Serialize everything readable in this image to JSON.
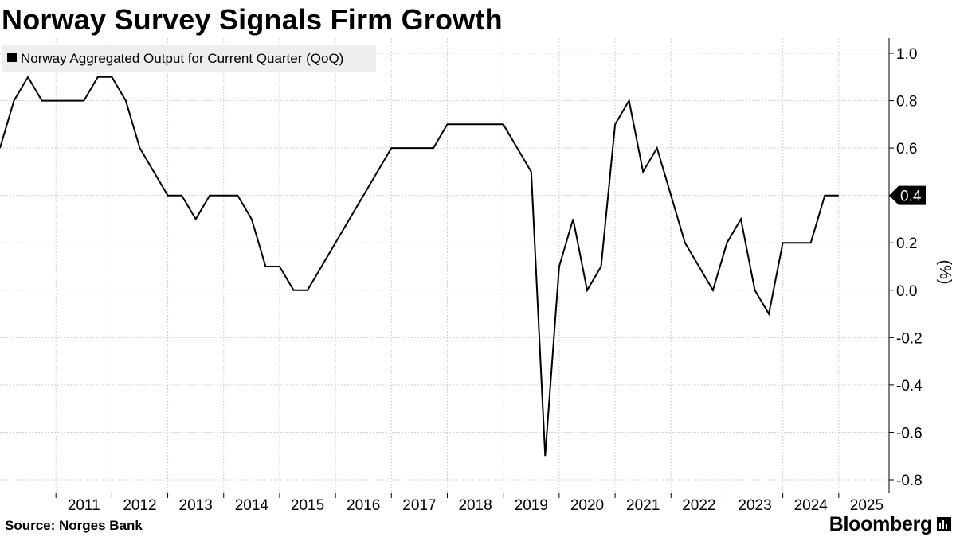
{
  "header": {
    "title": "Norway Survey Signals Firm Growth"
  },
  "footer": {
    "source": "Source: Norges Bank",
    "brand": "Bloomberg"
  },
  "chart_data": {
    "type": "line",
    "title": "Norway Survey Signals Firm Growth",
    "ylabel": "(%)",
    "xlabel": "",
    "ylim": [
      -0.8,
      1.0
    ],
    "yticks": [
      1.0,
      0.8,
      0.6,
      0.4,
      0.2,
      0.0,
      -0.2,
      -0.4,
      -0.6,
      -0.8
    ],
    "ytick_labels": [
      "1.0",
      "0.8",
      "0.6",
      "0.4",
      "0.2",
      "0.0",
      "-0.2",
      "-0.4",
      "-0.6",
      "-0.8"
    ],
    "xlim": [
      2010.0,
      2025.9
    ],
    "x_tick_labels": [
      "2011",
      "2012",
      "2013",
      "2014",
      "2015",
      "2016",
      "2017",
      "2018",
      "2019",
      "2020",
      "2021",
      "2022",
      "2023",
      "2024",
      "2025"
    ],
    "grid": true,
    "legend_position": "top-left",
    "last_value_label": "0.4",
    "series": [
      {
        "name": "Norway Aggregated Output for Current Quarter (QoQ)",
        "color": "#000000",
        "points": [
          [
            2010.0,
            0.6
          ],
          [
            2010.25,
            0.8
          ],
          [
            2010.5,
            0.9
          ],
          [
            2010.75,
            0.8
          ],
          [
            2011.0,
            0.8
          ],
          [
            2011.25,
            0.8
          ],
          [
            2011.5,
            0.8
          ],
          [
            2011.75,
            0.9
          ],
          [
            2012.0,
            0.9
          ],
          [
            2012.25,
            0.8
          ],
          [
            2012.5,
            0.6
          ],
          [
            2012.75,
            0.5
          ],
          [
            2013.0,
            0.4
          ],
          [
            2013.25,
            0.4
          ],
          [
            2013.5,
            0.3
          ],
          [
            2013.75,
            0.4
          ],
          [
            2014.0,
            0.4
          ],
          [
            2014.25,
            0.4
          ],
          [
            2014.5,
            0.3
          ],
          [
            2014.75,
            0.1
          ],
          [
            2015.0,
            0.1
          ],
          [
            2015.25,
            0.0
          ],
          [
            2015.5,
            0.0
          ],
          [
            2017.0,
            0.6
          ],
          [
            2017.25,
            0.6
          ],
          [
            2017.5,
            0.6
          ],
          [
            2017.75,
            0.6
          ],
          [
            2018.0,
            0.7
          ],
          [
            2018.25,
            0.7
          ],
          [
            2018.5,
            0.7
          ],
          [
            2018.75,
            0.7
          ],
          [
            2019.0,
            0.7
          ],
          [
            2019.5,
            0.5
          ],
          [
            2019.75,
            -0.7
          ],
          [
            2020.0,
            0.1
          ],
          [
            2020.25,
            0.3
          ],
          [
            2020.5,
            0.0
          ],
          [
            2020.75,
            0.1
          ],
          [
            2021.0,
            0.7
          ],
          [
            2021.25,
            0.8
          ],
          [
            2021.5,
            0.5
          ],
          [
            2021.75,
            0.6
          ],
          [
            2022.0,
            0.4
          ],
          [
            2022.25,
            0.2
          ],
          [
            2022.5,
            0.1
          ],
          [
            2022.75,
            0.0
          ],
          [
            2023.0,
            0.2
          ],
          [
            2023.25,
            0.3
          ],
          [
            2023.5,
            0.0
          ],
          [
            2023.75,
            -0.1
          ],
          [
            2024.0,
            0.2
          ],
          [
            2024.25,
            0.2
          ],
          [
            2024.5,
            0.2
          ],
          [
            2024.75,
            0.4
          ],
          [
            2025.0,
            0.4
          ]
        ]
      }
    ]
  }
}
